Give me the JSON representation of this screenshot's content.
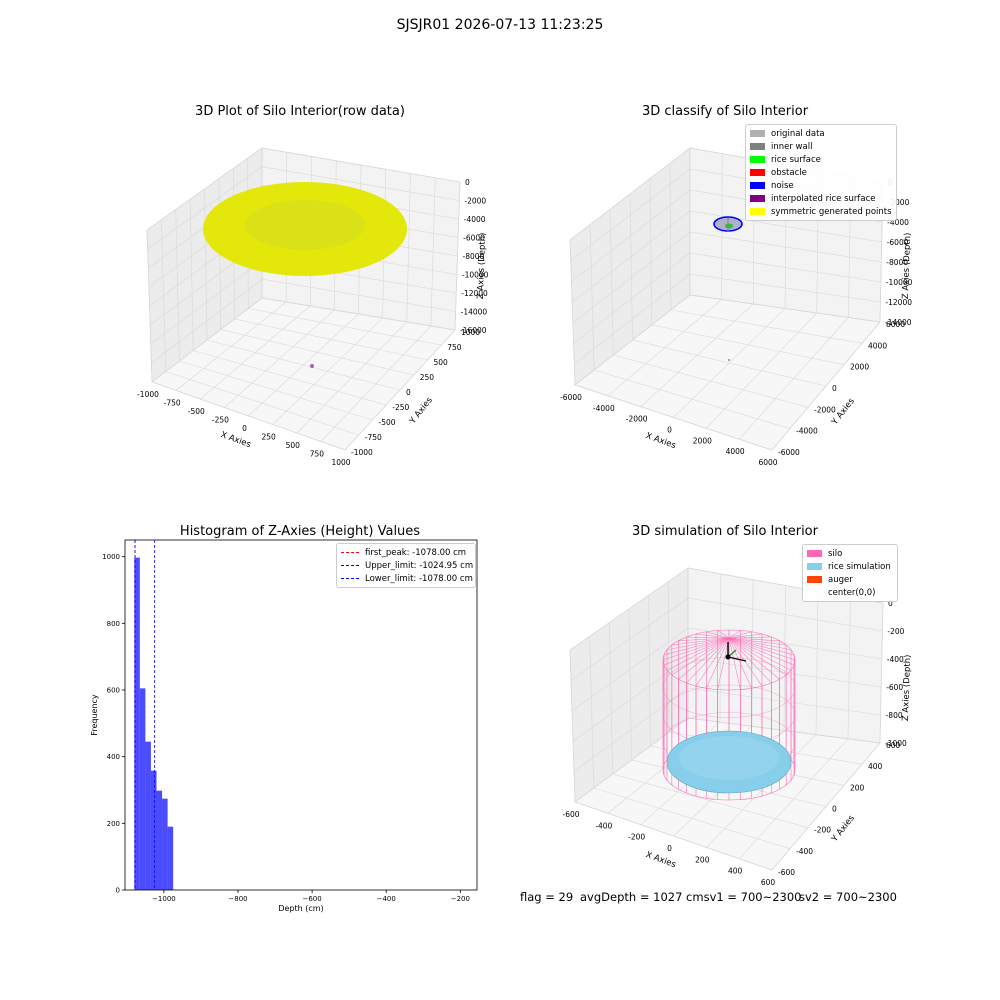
{
  "suptitle": "SJSJR01 2026-07-13 11:23:25",
  "footer": {
    "flag": "flag = 29",
    "avg": "avgDepth = 1027 cmsv1 = 700~2300",
    "sv2": "sv2 = 700~2300"
  },
  "chart_data": [
    {
      "type": "scatter",
      "title": "3D Plot of Silo Interior(row data)",
      "xlabel": "X Axies",
      "ylabel": "Y Axies",
      "zlabel": "Z Axies (Depth)",
      "xticks": [
        "-1000",
        "-750",
        "-500",
        "-250",
        "0",
        "250",
        "500",
        "750",
        "1000"
      ],
      "yticks": [
        "-1000",
        "-750",
        "-500",
        "-250",
        "0",
        "250",
        "500",
        "750",
        "1000"
      ],
      "zticks": [
        "0",
        "-2000",
        "-4000",
        "-6000",
        "-8000",
        "-10000",
        "-12000",
        "-14000",
        "-16000"
      ],
      "xlim": [
        -1000,
        1000
      ],
      "ylim": [
        -1000,
        1000
      ],
      "zlim": [
        -16000,
        0
      ],
      "points_color": "#e3e80a",
      "outlier_color": "#b05fb0"
    },
    {
      "type": "scatter",
      "title": "3D classify of Silo Interior",
      "xlabel": "X Axies",
      "ylabel": "Y Axies",
      "zlabel": "Z Axies (Depth)",
      "xticks": [
        "-6000",
        "-4000",
        "-2000",
        "0",
        "2000",
        "4000",
        "6000"
      ],
      "yticks": [
        "-6000",
        "-4000",
        "-2000",
        "0",
        "2000",
        "4000",
        "6000"
      ],
      "zticks": [
        "0",
        "-2000",
        "-4000",
        "-6000",
        "-8000",
        "-10000",
        "-12000",
        "-14000"
      ],
      "legend_position": "top-right",
      "legend": [
        {
          "label": "original data",
          "color": "#b0b0b0"
        },
        {
          "label": "inner wall",
          "color": "#808080"
        },
        {
          "label": "rice surface",
          "color": "#00ff00"
        },
        {
          "label": "obstacle",
          "color": "#ff0000"
        },
        {
          "label": "noise",
          "color": "#0000ff"
        },
        {
          "label": "interpolated rice surface",
          "color": "#800080"
        },
        {
          "label": "symmetric generated points",
          "color": "#ffff00"
        }
      ]
    },
    {
      "type": "bar",
      "title": "Histogram of Z-Axies (Height) Values",
      "xlabel": "Depth (cm)",
      "ylabel": "Frequency",
      "xlim": [
        -1105,
        -155
      ],
      "ylim": [
        0,
        1050
      ],
      "xticks": [
        -1000,
        -800,
        -600,
        -400,
        -200
      ],
      "xtick_labels": [
        "−1000",
        "−800",
        "−600",
        "−400",
        "−200"
      ],
      "yticks": [
        0,
        200,
        400,
        600,
        800,
        1000
      ],
      "bar_color": "#0000ff",
      "bins": [
        {
          "x0": -1080,
          "x1": -1065,
          "value": 997
        },
        {
          "x0": -1065,
          "x1": -1050,
          "value": 605
        },
        {
          "x0": -1050,
          "x1": -1035,
          "value": 445
        },
        {
          "x0": -1035,
          "x1": -1020,
          "value": 358
        },
        {
          "x0": -1020,
          "x1": -1005,
          "value": 298
        },
        {
          "x0": -1005,
          "x1": -990,
          "value": 274
        },
        {
          "x0": -990,
          "x1": -975,
          "value": 190
        }
      ],
      "legend_position": "top-right",
      "lines": [
        {
          "label": "first_peak: -1078.00 cm",
          "x": -1078.0,
          "color": "#ff0000"
        },
        {
          "label": "Upper_limit: -1024.95 cm",
          "x": -1024.95,
          "color": "#0000ff"
        },
        {
          "label": "Lower_limit: -1078.00 cm",
          "x": -1078.0,
          "color": "#0000ff"
        }
      ]
    },
    {
      "type": "scatter",
      "title": "3D simulation of Silo Interior",
      "xlabel": "X Axies",
      "ylabel": "Y Axies",
      "zlabel": "Z Axies (Depth)",
      "xticks": [
        "-600",
        "-400",
        "-200",
        "0",
        "200",
        "400",
        "600"
      ],
      "yticks": [
        "-600",
        "-400",
        "-200",
        "0",
        "200",
        "400",
        "600"
      ],
      "zticks": [
        "0",
        "-200",
        "-400",
        "-600",
        "-800",
        "-1000"
      ],
      "legend_position": "top-right",
      "legend": [
        {
          "label": "silo",
          "color": "#ff69b4"
        },
        {
          "label": "rice simulation",
          "color": "#87ceeb"
        },
        {
          "label": "auger",
          "color": "#ff4500"
        },
        {
          "label": "center(0,0)",
          "color": ""
        }
      ]
    }
  ]
}
